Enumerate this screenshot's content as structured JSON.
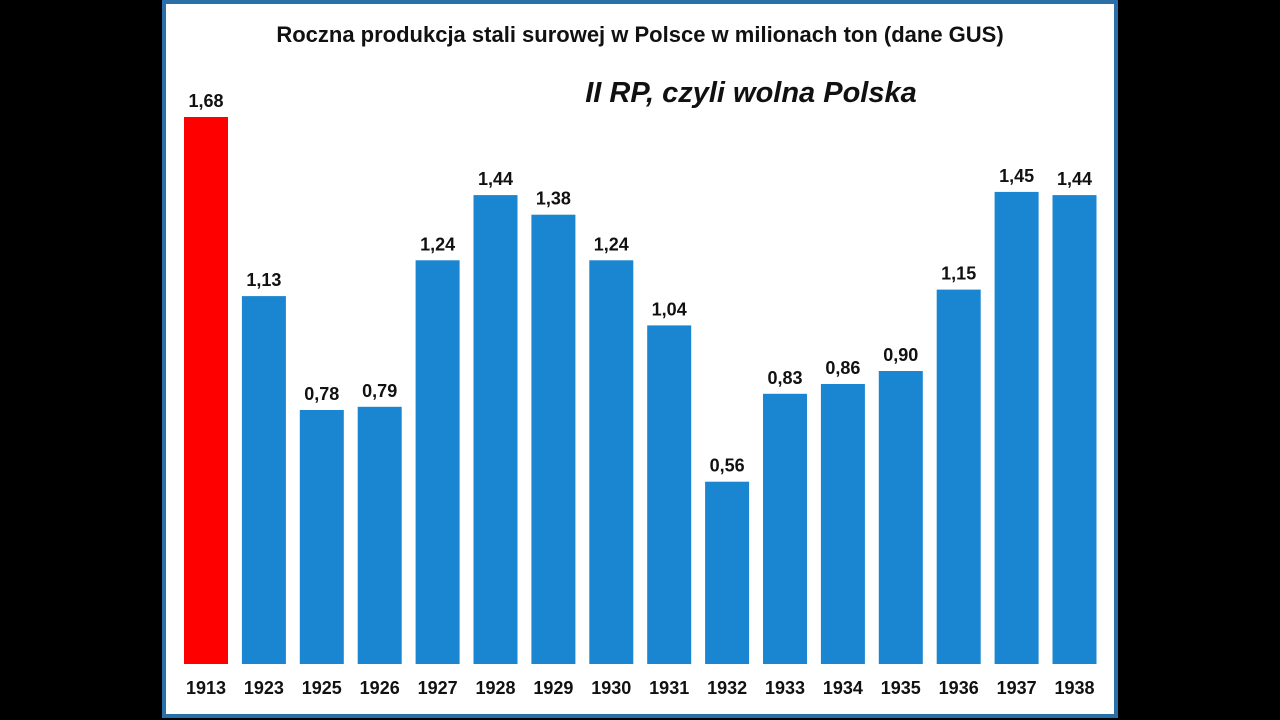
{
  "chart_data": {
    "type": "bar",
    "title": "Roczna produkcja stali surowej w Polsce w milionach ton (dane GUS)",
    "subtitle": "II RP, czyli wolna Polska",
    "categories": [
      "1913",
      "1923",
      "1925",
      "1926",
      "1927",
      "1928",
      "1929",
      "1930",
      "1931",
      "1932",
      "1933",
      "1934",
      "1935",
      "1936",
      "1937",
      "1938"
    ],
    "values": [
      1.68,
      1.13,
      0.78,
      0.79,
      1.24,
      1.44,
      1.38,
      1.24,
      1.04,
      0.56,
      0.83,
      0.86,
      0.9,
      1.15,
      1.45,
      1.44
    ],
    "value_labels": [
      "1,68",
      "1,13",
      "0,78",
      "0,79",
      "1,24",
      "1,44",
      "1,38",
      "1,24",
      "1,04",
      "0,56",
      "0,83",
      "0,86",
      "0,90",
      "1,15",
      "1,45",
      "1,44"
    ],
    "ylim": [
      0,
      1.68
    ],
    "grid": false,
    "legend": "none",
    "colors": {
      "default_bar": "#1a85d0",
      "highlight_bar": "#ff0000",
      "frame": "#2a6fa8",
      "background": "#ffffff",
      "outer_background": "#000000"
    },
    "highlight_index": 0
  }
}
